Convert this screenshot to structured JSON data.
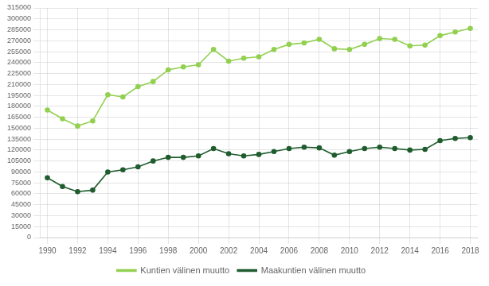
{
  "chart_data": {
    "type": "line",
    "x": [
      1990,
      1991,
      1992,
      1993,
      1994,
      1995,
      1996,
      1997,
      1998,
      1999,
      2000,
      2001,
      2002,
      2003,
      2004,
      2005,
      2006,
      2007,
      2008,
      2009,
      2010,
      2011,
      2012,
      2013,
      2014,
      2015,
      2016,
      2017,
      2018
    ],
    "series": [
      {
        "name": "Kuntien välinen muutto",
        "color": "#92D050",
        "marker": "circle",
        "values": [
          175000,
          163000,
          153000,
          160000,
          196000,
          193000,
          207000,
          214000,
          230000,
          234000,
          237000,
          258000,
          242000,
          246000,
          248000,
          258000,
          265000,
          267000,
          272000,
          259000,
          258000,
          265000,
          273000,
          272000,
          263000,
          264000,
          277000,
          282000,
          287000
        ]
      },
      {
        "name": "Maakuntien välinen muutto",
        "color": "#1F5C2E",
        "marker": "circle",
        "values": [
          82000,
          70000,
          63000,
          65000,
          90000,
          93000,
          97000,
          105000,
          110000,
          110000,
          112000,
          122000,
          115000,
          112000,
          114000,
          118000,
          122000,
          124000,
          123000,
          113000,
          118000,
          122000,
          124000,
          122000,
          120000,
          121000,
          133000,
          136000,
          137000
        ]
      }
    ],
    "xlim": [
      1989.5,
      2018.5
    ],
    "xticks": [
      1990,
      1992,
      1994,
      1996,
      1998,
      2000,
      2002,
      2004,
      2006,
      2008,
      2010,
      2012,
      2014,
      2016,
      2018
    ],
    "ylim": [
      0,
      315000
    ],
    "yticks": [
      0,
      15000,
      30000,
      45000,
      60000,
      75000,
      90000,
      105000,
      120000,
      135000,
      150000,
      165000,
      180000,
      195000,
      210000,
      225000,
      240000,
      255000,
      270000,
      285000,
      300000,
      315000
    ],
    "grid": true,
    "legend": "bottom"
  }
}
